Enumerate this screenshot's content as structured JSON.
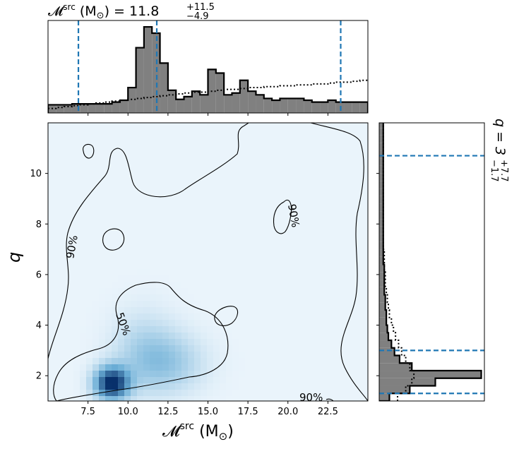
{
  "chart_data": {
    "type": "heatmap",
    "title_main": "𝓜",
    "title_sup": "src",
    "title_rest": " (M",
    "title_sun": "⊙",
    "title_tail": ") = 11.8",
    "title_upper": "+11.5",
    "title_lower": "−4.9",
    "right_title_main": "q = 3",
    "right_title_upper": "+7.7",
    "right_title_lower": "−1.7",
    "xlabel_main": "𝓜",
    "xlabel_sup": "src",
    "xlabel_rest": " (M",
    "xlabel_sun": "⊙",
    "xlabel_tail": ")",
    "ylabel": "q",
    "xlim": [
      5.0,
      25.0
    ],
    "ylim": [
      1.0,
      12.0
    ],
    "xticks": [
      "7.5",
      "10.0",
      "12.5",
      "15.0",
      "17.5",
      "20.0",
      "22.5"
    ],
    "xtick_values": [
      7.5,
      10.0,
      12.5,
      15.0,
      17.5,
      20.0,
      22.5
    ],
    "yticks": [
      "2",
      "4",
      "6",
      "8",
      "10"
    ],
    "ytick_values": [
      2,
      4,
      6,
      8,
      10
    ],
    "contour_labels": [
      "90%",
      "50%",
      "90%",
      "90%"
    ],
    "density_peaks": [
      {
        "x": 9.0,
        "y": 1.7,
        "weight": 1.0
      },
      {
        "x": 12.5,
        "y": 2.5,
        "weight": 0.25
      },
      {
        "x": 11.0,
        "y": 3.0,
        "weight": 0.18
      }
    ],
    "top_histogram": {
      "bin_edges_start": 5.0,
      "bin_width": 0.5,
      "posterior_counts": [
        0.09,
        0.09,
        0.09,
        0.1,
        0.1,
        0.1,
        0.1,
        0.1,
        0.12,
        0.14,
        0.28,
        0.72,
        0.95,
        0.88,
        0.55,
        0.25,
        0.15,
        0.18,
        0.24,
        0.2,
        0.48,
        0.44,
        0.2,
        0.22,
        0.36,
        0.24,
        0.2,
        0.16,
        0.14,
        0.16,
        0.16,
        0.16,
        0.14,
        0.12,
        0.12,
        0.14,
        0.12,
        0.12,
        0.12,
        0.12
      ],
      "prior_counts": [
        0.05,
        0.06,
        0.07,
        0.08,
        0.09,
        0.1,
        0.11,
        0.12,
        0.13,
        0.14,
        0.15,
        0.16,
        0.17,
        0.18,
        0.19,
        0.2,
        0.21,
        0.22,
        0.23,
        0.23,
        0.24,
        0.25,
        0.26,
        0.26,
        0.27,
        0.28,
        0.28,
        0.29,
        0.29,
        0.3,
        0.3,
        0.31,
        0.31,
        0.32,
        0.32,
        0.33,
        0.34,
        0.34,
        0.35,
        0.36
      ],
      "dashed_lines": [
        6.9,
        11.8,
        23.3
      ]
    },
    "right_histogram": {
      "bin_edges_start": 1.0,
      "bin_width": 0.3,
      "posterior_counts": [
        0.1,
        0.3,
        0.55,
        1.0,
        0.32,
        0.2,
        0.15,
        0.12,
        0.09,
        0.08,
        0.07,
        0.07,
        0.06,
        0.06,
        0.05,
        0.05,
        0.05,
        0.05,
        0.04,
        0.04,
        0.04,
        0.04,
        0.04,
        0.04,
        0.04,
        0.04,
        0.04,
        0.04,
        0.04,
        0.04,
        0.04,
        0.04,
        0.04,
        0.04,
        0.04,
        0.04,
        0.04
      ],
      "prior_counts": [
        0.18,
        0.26,
        0.32,
        0.34,
        0.3,
        0.26,
        0.22,
        0.19,
        0.16,
        0.14,
        0.12,
        0.1,
        0.09,
        0.08,
        0.07,
        0.06,
        0.06,
        0.05,
        0.05,
        0.05,
        0.04,
        0.04,
        0.04,
        0.04,
        0.04,
        0.04,
        0.04,
        0.04,
        0.04,
        0.04,
        0.04,
        0.04,
        0.04,
        0.04,
        0.04,
        0.04,
        0.04
      ],
      "dashed_lines": [
        1.3,
        3.0,
        10.7
      ]
    },
    "colors": {
      "hist_fill": "#808080",
      "dashed": "#1f77b4",
      "heat_low": "#f7fbff",
      "heat_high": "#08306b"
    }
  }
}
